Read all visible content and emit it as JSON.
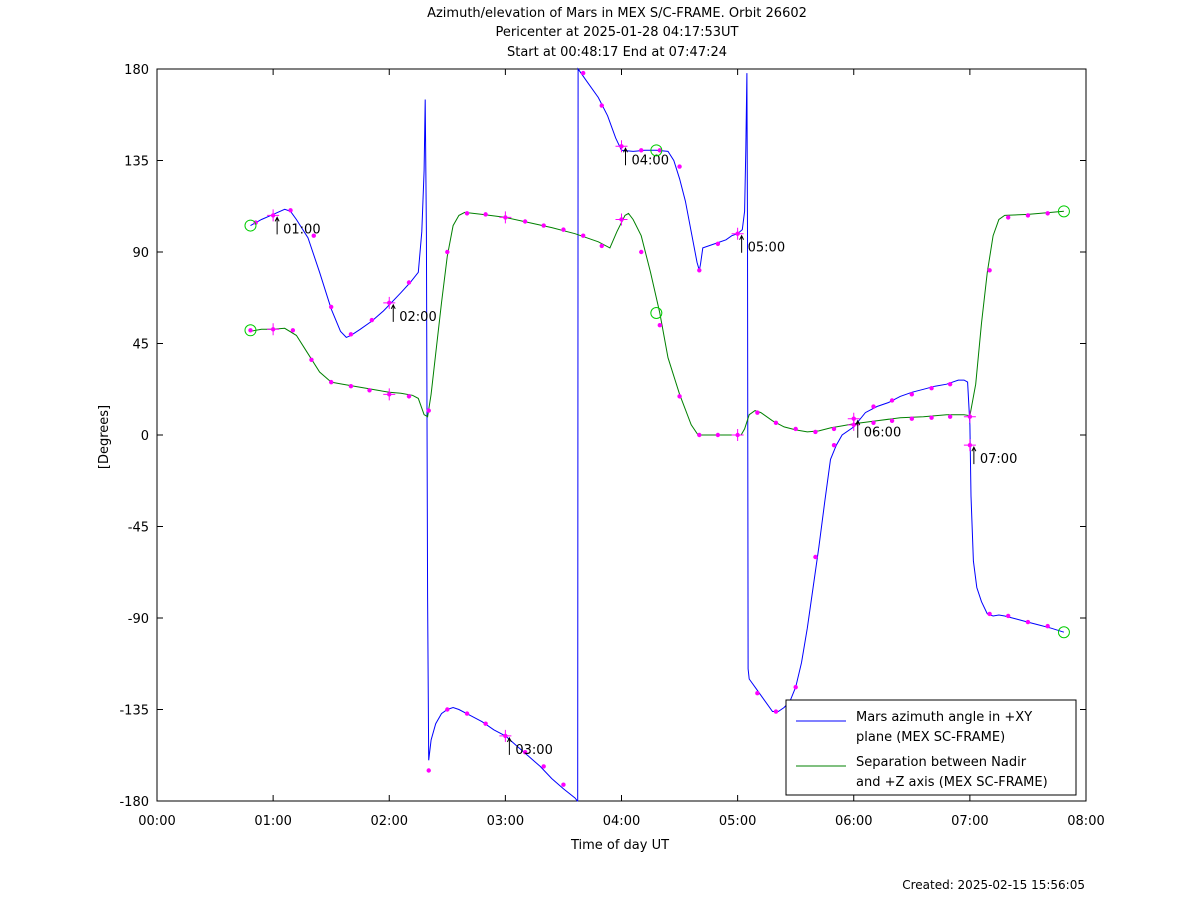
{
  "chart_data": {
    "type": "line",
    "title_lines": [
      "Azimuth/elevation of Mars in MEX S/C-FRAME.  Orbit 26602",
      "Pericenter at 2025-01-28 04:17:53UT",
      "Start at 00:48:17 End at 07:47:24"
    ],
    "xlabel": "Time of day UT",
    "ylabel": "[Degrees]",
    "xlim": [
      0,
      8
    ],
    "ylim": [
      -180,
      180
    ],
    "x_ticks": [
      {
        "v": 0,
        "label": "00:00"
      },
      {
        "v": 1,
        "label": "01:00"
      },
      {
        "v": 2,
        "label": "02:00"
      },
      {
        "v": 3,
        "label": "03:00"
      },
      {
        "v": 4,
        "label": "04:00"
      },
      {
        "v": 5,
        "label": "05:00"
      },
      {
        "v": 6,
        "label": "06:00"
      },
      {
        "v": 7,
        "label": "07:00"
      },
      {
        "v": 8,
        "label": "08:00"
      }
    ],
    "y_ticks": [
      {
        "v": 180,
        "label": "180"
      },
      {
        "v": 135,
        "label": "135"
      },
      {
        "v": 90,
        "label": "90"
      },
      {
        "v": 45,
        "label": "45"
      },
      {
        "v": 0,
        "label": "0"
      },
      {
        "v": -45,
        "label": "-45"
      },
      {
        "v": -90,
        "label": "-90"
      },
      {
        "v": -135,
        "label": "-135"
      },
      {
        "v": -180,
        "label": "-180"
      }
    ],
    "grid": false,
    "legend_position": "bottom-right",
    "series": [
      {
        "name": "Mars azimuth angle in +XY plane (MEX SC-FRAME)",
        "legend_lines": [
          "Mars azimuth angle in +XY",
          "plane (MEX SC-FRAME)"
        ],
        "color": "#0000ff",
        "points": [
          [
            0.805,
            103
          ],
          [
            0.9,
            106
          ],
          [
            1.0,
            108.5
          ],
          [
            1.1,
            111
          ],
          [
            1.15,
            110
          ],
          [
            1.2,
            106
          ],
          [
            1.3,
            97
          ],
          [
            1.4,
            80
          ],
          [
            1.5,
            62
          ],
          [
            1.58,
            51
          ],
          [
            1.63,
            48
          ],
          [
            1.67,
            49
          ],
          [
            1.75,
            52
          ],
          [
            1.85,
            56
          ],
          [
            1.95,
            61
          ],
          [
            2.0,
            64
          ],
          [
            2.1,
            70
          ],
          [
            2.18,
            75
          ],
          [
            2.25,
            80
          ],
          [
            2.28,
            100
          ],
          [
            2.3,
            130
          ],
          [
            2.31,
            165
          ],
          [
            2.32,
            100
          ],
          [
            2.33,
            -80
          ],
          [
            2.34,
            -160
          ],
          [
            2.36,
            -150
          ],
          [
            2.4,
            -142
          ],
          [
            2.45,
            -137
          ],
          [
            2.5,
            -135
          ],
          [
            2.55,
            -134
          ],
          [
            2.6,
            -135
          ],
          [
            2.7,
            -138
          ],
          [
            2.8,
            -141
          ],
          [
            2.9,
            -145
          ],
          [
            3.0,
            -148
          ],
          [
            3.1,
            -153
          ],
          [
            3.2,
            -158
          ],
          [
            3.3,
            -163
          ],
          [
            3.4,
            -169
          ],
          [
            3.5,
            -174
          ],
          [
            3.6,
            -178.5
          ],
          [
            3.62,
            -180
          ],
          [
            3.623,
            -180
          ],
          [
            3.626,
            180
          ],
          [
            3.7,
            174
          ],
          [
            3.8,
            166
          ],
          [
            3.88,
            157
          ],
          [
            3.95,
            146
          ],
          [
            4.0,
            140
          ],
          [
            4.1,
            139.5
          ],
          [
            4.2,
            140
          ],
          [
            4.3,
            140
          ],
          [
            4.4,
            139.5
          ],
          [
            4.45,
            135
          ],
          [
            4.5,
            126
          ],
          [
            4.55,
            115
          ],
          [
            4.6,
            100
          ],
          [
            4.65,
            85
          ],
          [
            4.67,
            81
          ],
          [
            4.68,
            84
          ],
          [
            4.7,
            92
          ],
          [
            4.8,
            94
          ],
          [
            4.9,
            96
          ],
          [
            4.95,
            98
          ],
          [
            5.0,
            99
          ],
          [
            5.04,
            101
          ],
          [
            5.06,
            110
          ],
          [
            5.07,
            140
          ],
          [
            5.08,
            178
          ],
          [
            5.085,
            100
          ],
          [
            5.09,
            -115
          ],
          [
            5.1,
            -120
          ],
          [
            5.15,
            -124
          ],
          [
            5.2,
            -128
          ],
          [
            5.3,
            -136
          ],
          [
            5.35,
            -136
          ],
          [
            5.4,
            -134
          ],
          [
            5.45,
            -131
          ],
          [
            5.5,
            -124
          ],
          [
            5.55,
            -112
          ],
          [
            5.6,
            -95
          ],
          [
            5.65,
            -75
          ],
          [
            5.7,
            -55
          ],
          [
            5.75,
            -33
          ],
          [
            5.8,
            -12
          ],
          [
            5.85,
            -5
          ],
          [
            5.9,
            0
          ],
          [
            6.0,
            4
          ],
          [
            6.1,
            11
          ],
          [
            6.2,
            14
          ],
          [
            6.3,
            16
          ],
          [
            6.4,
            19
          ],
          [
            6.5,
            21
          ],
          [
            6.6,
            22.5
          ],
          [
            6.7,
            24
          ],
          [
            6.8,
            25
          ],
          [
            6.9,
            27
          ],
          [
            6.95,
            27
          ],
          [
            6.98,
            26
          ],
          [
            7.0,
            5
          ],
          [
            7.01,
            -30
          ],
          [
            7.03,
            -62
          ],
          [
            7.06,
            -75
          ],
          [
            7.1,
            -82
          ],
          [
            7.15,
            -88
          ],
          [
            7.2,
            -89
          ],
          [
            7.25,
            -88.5
          ],
          [
            7.3,
            -89
          ],
          [
            7.4,
            -90.5
          ],
          [
            7.5,
            -92
          ],
          [
            7.6,
            -93.5
          ],
          [
            7.7,
            -95
          ],
          [
            7.81,
            -97
          ]
        ],
        "markers": [
          [
            0.85,
            104.5
          ],
          [
            1.0,
            108
          ],
          [
            1.15,
            110.5
          ],
          [
            1.35,
            98
          ],
          [
            1.5,
            63
          ],
          [
            1.67,
            49.5
          ],
          [
            1.85,
            56.5
          ],
          [
            2.0,
            65
          ],
          [
            2.17,
            75
          ],
          [
            2.34,
            -165
          ],
          [
            2.5,
            -135
          ],
          [
            2.67,
            -137
          ],
          [
            2.83,
            -142
          ],
          [
            3.0,
            -148
          ],
          [
            3.17,
            -156
          ],
          [
            3.33,
            -163
          ],
          [
            3.5,
            -172
          ],
          [
            3.67,
            178
          ],
          [
            3.83,
            162
          ],
          [
            4.0,
            142
          ],
          [
            4.17,
            140
          ],
          [
            4.33,
            140
          ],
          [
            4.5,
            132
          ],
          [
            4.67,
            81
          ],
          [
            4.83,
            94
          ],
          [
            5.0,
            99
          ],
          [
            5.17,
            -127
          ],
          [
            5.33,
            -136
          ],
          [
            5.5,
            -124
          ],
          [
            5.67,
            -60
          ],
          [
            5.83,
            -5
          ],
          [
            6.0,
            8
          ],
          [
            6.17,
            14
          ],
          [
            6.33,
            17
          ],
          [
            6.5,
            20
          ],
          [
            6.67,
            23
          ],
          [
            6.83,
            25
          ],
          [
            7.0,
            -5
          ],
          [
            7.17,
            -88
          ],
          [
            7.33,
            -89
          ],
          [
            7.5,
            -92
          ],
          [
            7.67,
            -94
          ]
        ]
      },
      {
        "name": "Separation between Nadir and +Z axis (MEX SC-FRAME)",
        "legend_lines": [
          "Separation between Nadir",
          "and +Z axis (MEX SC-FRAME)"
        ],
        "color": "#008000",
        "points": [
          [
            0.805,
            51
          ],
          [
            0.9,
            52
          ],
          [
            1.0,
            52
          ],
          [
            1.1,
            52.5
          ],
          [
            1.2,
            49
          ],
          [
            1.3,
            40
          ],
          [
            1.4,
            31
          ],
          [
            1.5,
            26
          ],
          [
            1.6,
            25
          ],
          [
            1.7,
            24
          ],
          [
            1.8,
            23
          ],
          [
            1.9,
            22
          ],
          [
            2.0,
            21
          ],
          [
            2.1,
            20.5
          ],
          [
            2.2,
            19.5
          ],
          [
            2.25,
            18
          ],
          [
            2.3,
            10
          ],
          [
            2.33,
            9
          ],
          [
            2.36,
            20
          ],
          [
            2.4,
            40
          ],
          [
            2.45,
            65
          ],
          [
            2.5,
            88
          ],
          [
            2.55,
            103
          ],
          [
            2.6,
            108
          ],
          [
            2.65,
            109.5
          ],
          [
            2.8,
            108.5
          ],
          [
            3.0,
            107
          ],
          [
            3.2,
            104.5
          ],
          [
            3.4,
            102
          ],
          [
            3.6,
            99
          ],
          [
            3.8,
            95
          ],
          [
            3.9,
            92
          ],
          [
            3.96,
            100
          ],
          [
            4.03,
            108
          ],
          [
            4.06,
            109
          ],
          [
            4.1,
            106
          ],
          [
            4.17,
            98
          ],
          [
            4.25,
            80
          ],
          [
            4.33,
            60
          ],
          [
            4.4,
            38
          ],
          [
            4.5,
            20
          ],
          [
            4.6,
            5
          ],
          [
            4.66,
            0
          ],
          [
            4.7,
            0
          ],
          [
            5.0,
            0
          ],
          [
            5.03,
            0
          ],
          [
            5.06,
            3
          ],
          [
            5.1,
            10
          ],
          [
            5.15,
            12
          ],
          [
            5.2,
            11
          ],
          [
            5.3,
            7
          ],
          [
            5.4,
            4
          ],
          [
            5.5,
            2.5
          ],
          [
            5.6,
            1.5
          ],
          [
            5.7,
            2
          ],
          [
            5.8,
            3.5
          ],
          [
            5.9,
            4.5
          ],
          [
            6.0,
            5.5
          ],
          [
            6.2,
            7
          ],
          [
            6.4,
            8.5
          ],
          [
            6.6,
            9
          ],
          [
            6.8,
            10
          ],
          [
            6.95,
            10
          ],
          [
            7.0,
            9.5
          ],
          [
            7.05,
            25
          ],
          [
            7.1,
            55
          ],
          [
            7.15,
            80
          ],
          [
            7.2,
            98
          ],
          [
            7.25,
            106
          ],
          [
            7.3,
            108
          ],
          [
            7.5,
            108.5
          ],
          [
            7.7,
            109.5
          ],
          [
            7.81,
            110
          ]
        ],
        "markers": [
          [
            0.805,
            51.5
          ],
          [
            1.0,
            52
          ],
          [
            1.17,
            51.5
          ],
          [
            1.33,
            37
          ],
          [
            1.5,
            26
          ],
          [
            1.67,
            24
          ],
          [
            1.83,
            22
          ],
          [
            2.0,
            20
          ],
          [
            2.17,
            19
          ],
          [
            2.34,
            12
          ],
          [
            2.5,
            90
          ],
          [
            2.67,
            109
          ],
          [
            2.83,
            108.5
          ],
          [
            3.0,
            107
          ],
          [
            3.17,
            105
          ],
          [
            3.33,
            103
          ],
          [
            3.5,
            101
          ],
          [
            3.67,
            98
          ],
          [
            3.83,
            93
          ],
          [
            4.0,
            106
          ],
          [
            4.17,
            90
          ],
          [
            4.33,
            54
          ],
          [
            4.5,
            19
          ],
          [
            4.67,
            0
          ],
          [
            4.83,
            0
          ],
          [
            5.0,
            0
          ],
          [
            5.17,
            11
          ],
          [
            5.33,
            6
          ],
          [
            5.5,
            3
          ],
          [
            5.67,
            1.5
          ],
          [
            5.83,
            3
          ],
          [
            6.0,
            5
          ],
          [
            6.17,
            6
          ],
          [
            6.33,
            7
          ],
          [
            6.5,
            8
          ],
          [
            6.67,
            8.5
          ],
          [
            6.83,
            9
          ],
          [
            7.0,
            9
          ],
          [
            7.17,
            81
          ],
          [
            7.33,
            107
          ],
          [
            7.5,
            108
          ],
          [
            7.67,
            109
          ]
        ]
      }
    ],
    "hour_marks": [
      {
        "series": 0,
        "x": 1.0,
        "y": 108,
        "label": "01:00"
      },
      {
        "series": 0,
        "x": 2.0,
        "y": 65,
        "label": "02:00"
      },
      {
        "series": 0,
        "x": 3.0,
        "y": -148,
        "label": "03:00"
      },
      {
        "series": 0,
        "x": 4.0,
        "y": 142,
        "label": "04:00"
      },
      {
        "series": 0,
        "x": 5.0,
        "y": 99,
        "label": "05:00"
      },
      {
        "series": 0,
        "x": 6.0,
        "y": 8,
        "label": "06:00"
      },
      {
        "series": 0,
        "x": 7.0,
        "y": -5,
        "label": "07:00"
      }
    ],
    "aux_plus_marks": [
      {
        "series": 1,
        "x": 1.0,
        "y": 52
      },
      {
        "series": 1,
        "x": 2.0,
        "y": 20
      },
      {
        "series": 1,
        "x": 3.0,
        "y": 107
      },
      {
        "series": 1,
        "x": 4.0,
        "y": 106
      },
      {
        "series": 1,
        "x": 5.0,
        "y": 0
      },
      {
        "series": 1,
        "x": 6.0,
        "y": 5
      },
      {
        "series": 1,
        "x": 7.0,
        "y": 9
      }
    ],
    "circle_marks": [
      {
        "x": 0.805,
        "y": 103
      },
      {
        "x": 0.805,
        "y": 51.5
      },
      {
        "x": 4.3,
        "y": 140
      },
      {
        "x": 4.3,
        "y": 60
      },
      {
        "x": 7.81,
        "y": 110
      },
      {
        "x": 7.81,
        "y": -97
      }
    ]
  },
  "footer": {
    "created": "Created: 2025-02-15 15:56:05"
  },
  "colors": {
    "marker": "#ff00ff",
    "circle": "#00cc00",
    "axis": "#000000"
  }
}
